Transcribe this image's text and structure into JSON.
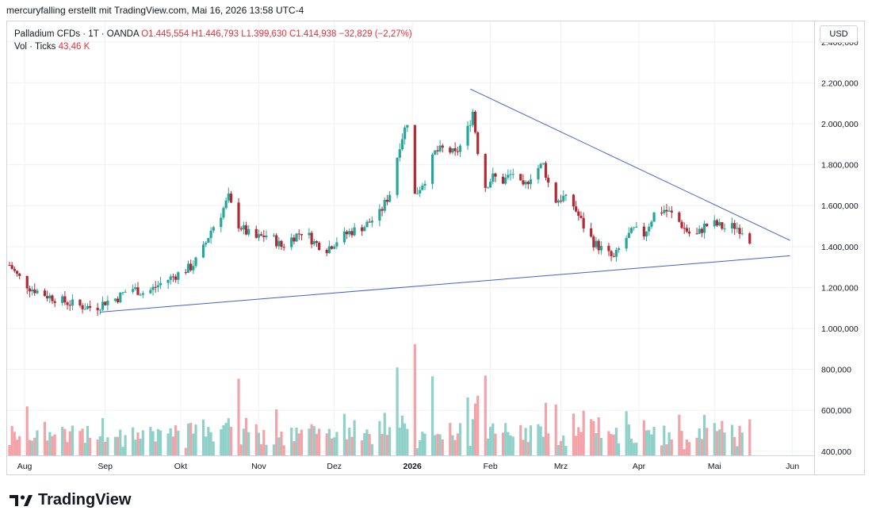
{
  "header": {
    "caption": "mercuryfalling erstellt mit TradingView.com, Mai 16, 2026 13:58 UTC-4"
  },
  "legend": {
    "symbol": "Palladium CFDs · 1T · OANDA",
    "open": "O1.445,554",
    "high": "H1.446,793",
    "low": "L1.399,630",
    "close": "C1.414,938",
    "change": "−32,829 (−2,27%)",
    "volume_label": "Vol · Ticks",
    "volume_value": "43,46 K"
  },
  "price_axis": {
    "currency": "USD"
  },
  "brand": {
    "name": "TradingView"
  },
  "colors": {
    "up": "#26a69a",
    "down": "#b22833",
    "vol_up": "#8fd0c9",
    "vol_down": "#f3a3a8",
    "trendline": "#3f63c8",
    "grid": "#eef0f3"
  },
  "chart_data": {
    "type": "candlestick",
    "price_ticks": [
      400000,
      600000,
      800000,
      1000000,
      1200000,
      1400000,
      1600000,
      1800000,
      2000000,
      2200000,
      2400000
    ],
    "price_tick_labels": [
      "400,000",
      "600,000",
      "800,000",
      "1.000,000",
      "1.200,000",
      "1.400,000",
      "1.600,000",
      "1.800,000",
      "2.000,000",
      "2.200,000",
      "2.400,000"
    ],
    "ylim": [
      380000,
      2500000
    ],
    "x_labels": [
      {
        "label": "Aug",
        "day": 6
      },
      {
        "label": "Sep",
        "day": 38
      },
      {
        "label": "Okt",
        "day": 68
      },
      {
        "label": "Nov",
        "day": 99
      },
      {
        "label": "Dez",
        "day": 129
      },
      {
        "label": "2026",
        "day": 160,
        "bold": true
      },
      {
        "label": "Feb",
        "day": 191
      },
      {
        "label": "Mrz",
        "day": 219
      },
      {
        "label": "Apr",
        "day": 250
      },
      {
        "label": "Mai",
        "day": 280
      },
      {
        "label": "Jun",
        "day": 311
      }
    ],
    "day_range": [
      0,
      318
    ],
    "trendlines": [
      {
        "name": "upper",
        "from": {
          "day": 183,
          "price": 2170000
        },
        "to": {
          "day": 310,
          "price": 1430000
        }
      },
      {
        "name": "lower",
        "from": {
          "day": 36,
          "price": 1080000
        },
        "to": {
          "day": 310,
          "price": 1355000
        }
      }
    ],
    "anchors": [
      [
        0,
        1310000
      ],
      [
        3,
        1260000
      ],
      [
        8,
        1200000
      ],
      [
        15,
        1160000
      ],
      [
        22,
        1130000
      ],
      [
        28,
        1110000
      ],
      [
        34,
        1100000
      ],
      [
        38,
        1130000
      ],
      [
        43,
        1150000
      ],
      [
        48,
        1200000
      ],
      [
        54,
        1170000
      ],
      [
        60,
        1220000
      ],
      [
        66,
        1260000
      ],
      [
        72,
        1300000
      ],
      [
        76,
        1360000
      ],
      [
        80,
        1480000
      ],
      [
        84,
        1560000
      ],
      [
        87,
        1640000
      ],
      [
        90,
        1520000
      ],
      [
        94,
        1470000
      ],
      [
        98,
        1440000
      ],
      [
        103,
        1460000
      ],
      [
        108,
        1400000
      ],
      [
        113,
        1450000
      ],
      [
        117,
        1480000
      ],
      [
        121,
        1420000
      ],
      [
        126,
        1390000
      ],
      [
        130,
        1430000
      ],
      [
        135,
        1470000
      ],
      [
        141,
        1500000
      ],
      [
        147,
        1560000
      ],
      [
        151,
        1660000
      ],
      [
        155,
        1900000
      ],
      [
        159,
        2050000
      ],
      [
        161,
        1650000
      ],
      [
        165,
        1730000
      ],
      [
        169,
        1860000
      ],
      [
        173,
        1880000
      ],
      [
        177,
        1850000
      ],
      [
        181,
        1930000
      ],
      [
        184,
        2060000
      ],
      [
        188,
        1680000
      ],
      [
        192,
        1740000
      ],
      [
        196,
        1720000
      ],
      [
        200,
        1760000
      ],
      [
        204,
        1680000
      ],
      [
        208,
        1770000
      ],
      [
        212,
        1800000
      ],
      [
        216,
        1620000
      ],
      [
        220,
        1640000
      ],
      [
        224,
        1600000
      ],
      [
        228,
        1500000
      ],
      [
        232,
        1420000
      ],
      [
        236,
        1380000
      ],
      [
        240,
        1340000
      ],
      [
        244,
        1430000
      ],
      [
        248,
        1480000
      ],
      [
        252,
        1460000
      ],
      [
        256,
        1560000
      ],
      [
        260,
        1580000
      ],
      [
        264,
        1550000
      ],
      [
        268,
        1490000
      ],
      [
        272,
        1440000
      ],
      [
        276,
        1500000
      ],
      [
        280,
        1510000
      ],
      [
        284,
        1490000
      ],
      [
        288,
        1500000
      ],
      [
        291,
        1480000
      ],
      [
        294,
        1415000
      ]
    ],
    "last_bar_day": 294,
    "volume_scale": [
      380000,
      950000
    ]
  }
}
